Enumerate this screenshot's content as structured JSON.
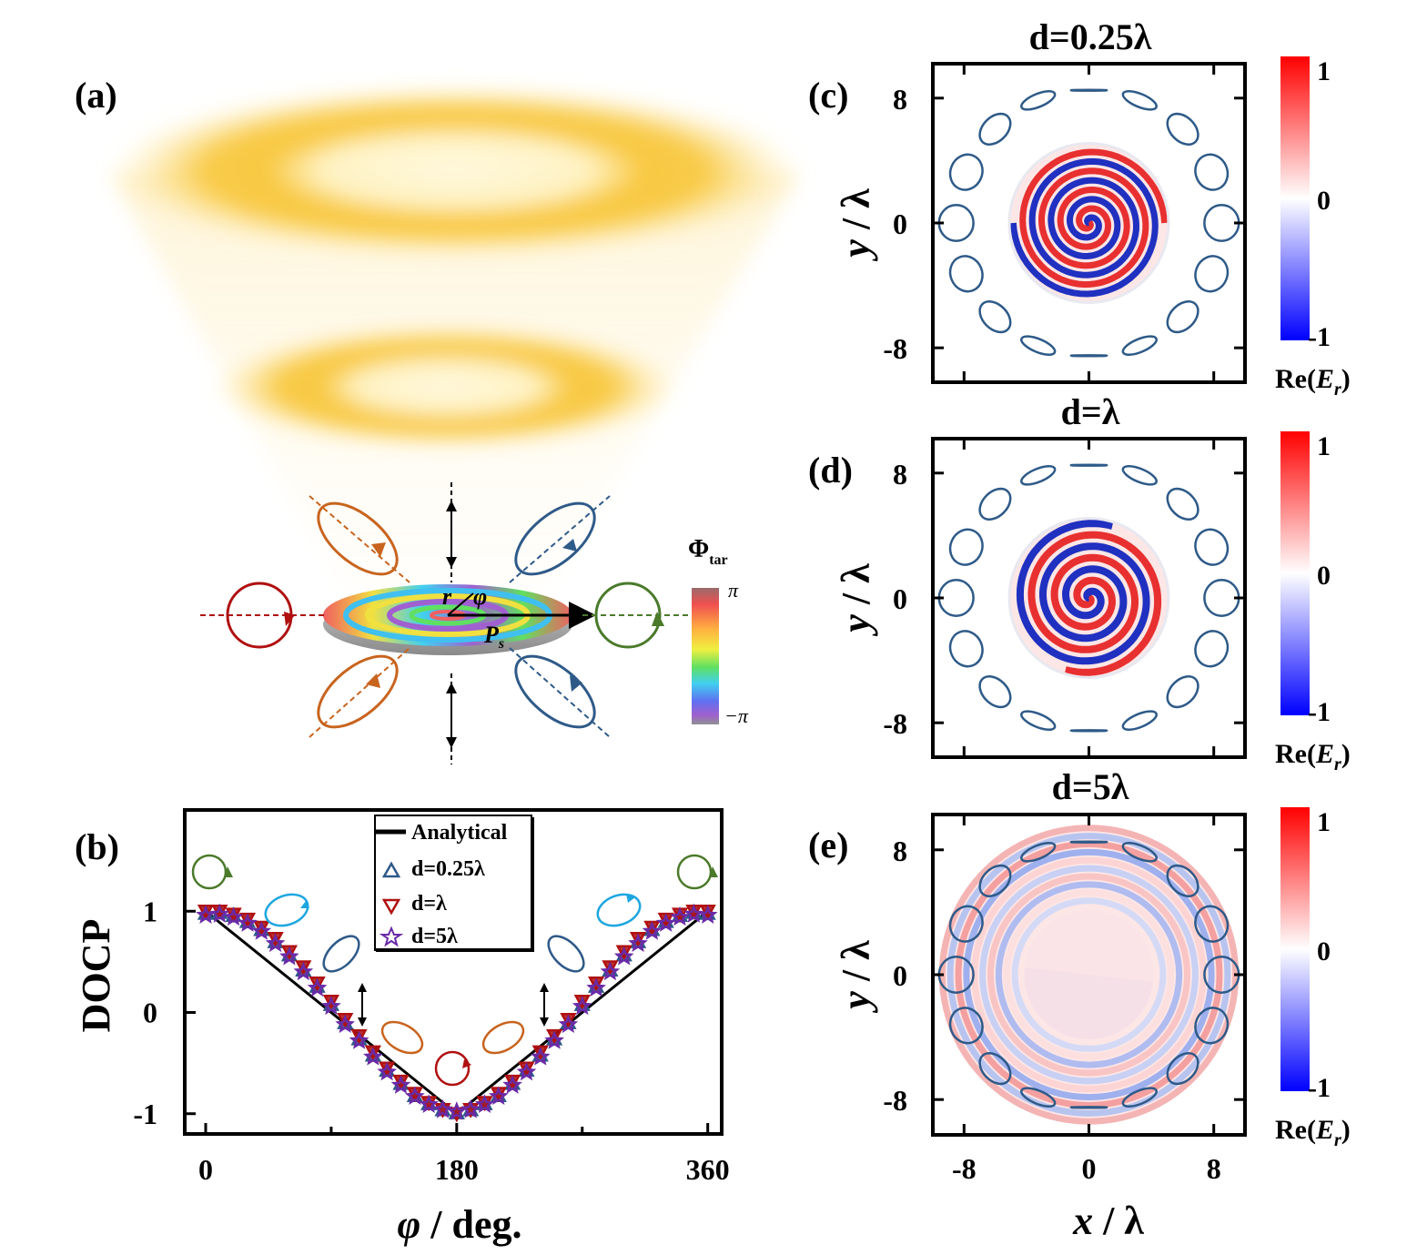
{
  "colors": {
    "orange": "#c8641e",
    "blue": "#2e5a88",
    "red": "#b01010",
    "green": "#4a7a2a",
    "cyan": "#1ea6e0",
    "purple": "#6a2aa8",
    "analytical": "#000000"
  },
  "panel_a": {
    "label": "(a)",
    "r_label": "r",
    "phi_label": "φ",
    "p_label": "P",
    "p_sub": "s",
    "phase_bar_title": "Φ",
    "phase_bar_sub": "tar",
    "phase_bar_max": "π",
    "phase_bar_min": "−π"
  },
  "panel_b": {
    "label": "(b)",
    "ylabel": "DOCP",
    "xlabel_sym": "φ",
    "xlabel_rest": " / deg."
  },
  "maps": {
    "ylabel_sym": "y",
    "xlabel_sym": "x",
    "unit": " / λ",
    "cb_label_prefix": "Re(",
    "cb_label_sym": "E",
    "cb_label_sub": "r",
    "cb_label_suffix": ")",
    "cb_ticks": [
      "1",
      "0",
      "-1"
    ],
    "x_ticks": [
      "-8",
      "0",
      "8"
    ],
    "y_ticks": [
      "8",
      "0",
      "-8"
    ],
    "panels": [
      {
        "label": "(c)",
        "title": "d=0.25λ",
        "pattern": "spiral-tight"
      },
      {
        "label": "(d)",
        "title": "d=λ",
        "pattern": "spiral"
      },
      {
        "label": "(e)",
        "title": "d=5λ",
        "pattern": "rings"
      }
    ]
  },
  "chart_data": {
    "type": "scatter",
    "title": "",
    "xlabel": "φ / deg.",
    "ylabel": "DOCP",
    "xlim": [
      -15,
      370
    ],
    "ylim": [
      -1.2,
      2.0
    ],
    "x_ticks": [
      0,
      180,
      360
    ],
    "y_ticks": [
      1,
      0,
      -1
    ],
    "x_tick_labels": [
      "0",
      "180",
      "360"
    ],
    "y_tick_labels": [
      "1",
      "0",
      "-1"
    ],
    "legend_position": "top-center",
    "series": [
      {
        "name": "Analytical",
        "marker": "line",
        "x": [
          0,
          180,
          360
        ],
        "y": [
          1,
          -1,
          1
        ]
      },
      {
        "name": "d=0.25λ",
        "marker": "triangle-up",
        "x": [
          0,
          10,
          20,
          30,
          40,
          50,
          60,
          70,
          80,
          90,
          100,
          110,
          120,
          130,
          140,
          150,
          160,
          170,
          180,
          190,
          200,
          210,
          220,
          230,
          240,
          250,
          260,
          270,
          280,
          290,
          300,
          310,
          320,
          330,
          340,
          350,
          360
        ],
        "y": [
          0.98,
          0.99,
          0.96,
          0.9,
          0.82,
          0.7,
          0.57,
          0.42,
          0.26,
          0.08,
          -0.1,
          -0.26,
          -0.42,
          -0.57,
          -0.7,
          -0.82,
          -0.9,
          -0.96,
          -0.99,
          -0.96,
          -0.9,
          -0.82,
          -0.7,
          -0.57,
          -0.42,
          -0.26,
          -0.1,
          0.08,
          0.26,
          0.42,
          0.57,
          0.7,
          0.82,
          0.9,
          0.96,
          0.99,
          0.98
        ]
      },
      {
        "name": "d=λ",
        "marker": "triangle-down",
        "x": [
          0,
          10,
          20,
          30,
          40,
          50,
          60,
          70,
          80,
          90,
          100,
          110,
          120,
          130,
          140,
          150,
          160,
          170,
          180,
          190,
          200,
          210,
          220,
          230,
          240,
          250,
          260,
          270,
          280,
          290,
          300,
          310,
          320,
          330,
          340,
          350,
          360
        ],
        "y": [
          1.0,
          1.0,
          0.97,
          0.92,
          0.84,
          0.73,
          0.6,
          0.45,
          0.29,
          0.11,
          -0.07,
          -0.23,
          -0.39,
          -0.55,
          -0.68,
          -0.8,
          -0.89,
          -0.96,
          -1.0,
          -0.96,
          -0.89,
          -0.8,
          -0.68,
          -0.55,
          -0.39,
          -0.23,
          -0.07,
          0.11,
          0.29,
          0.45,
          0.6,
          0.73,
          0.84,
          0.92,
          0.97,
          1.0,
          1.0
        ]
      },
      {
        "name": "d=5λ",
        "marker": "star",
        "x": [
          0,
          10,
          20,
          30,
          40,
          50,
          60,
          70,
          80,
          90,
          100,
          110,
          120,
          130,
          140,
          150,
          160,
          170,
          180,
          190,
          200,
          210,
          220,
          230,
          240,
          250,
          260,
          270,
          280,
          290,
          300,
          310,
          320,
          330,
          340,
          350,
          360
        ],
        "y": [
          0.96,
          0.97,
          0.94,
          0.88,
          0.8,
          0.68,
          0.55,
          0.4,
          0.24,
          0.06,
          -0.12,
          -0.28,
          -0.44,
          -0.59,
          -0.72,
          -0.83,
          -0.91,
          -0.96,
          -0.98,
          -0.96,
          -0.91,
          -0.83,
          -0.72,
          -0.59,
          -0.44,
          -0.28,
          -0.12,
          0.06,
          0.24,
          0.4,
          0.55,
          0.68,
          0.8,
          0.88,
          0.94,
          0.97,
          0.96
        ]
      }
    ]
  }
}
